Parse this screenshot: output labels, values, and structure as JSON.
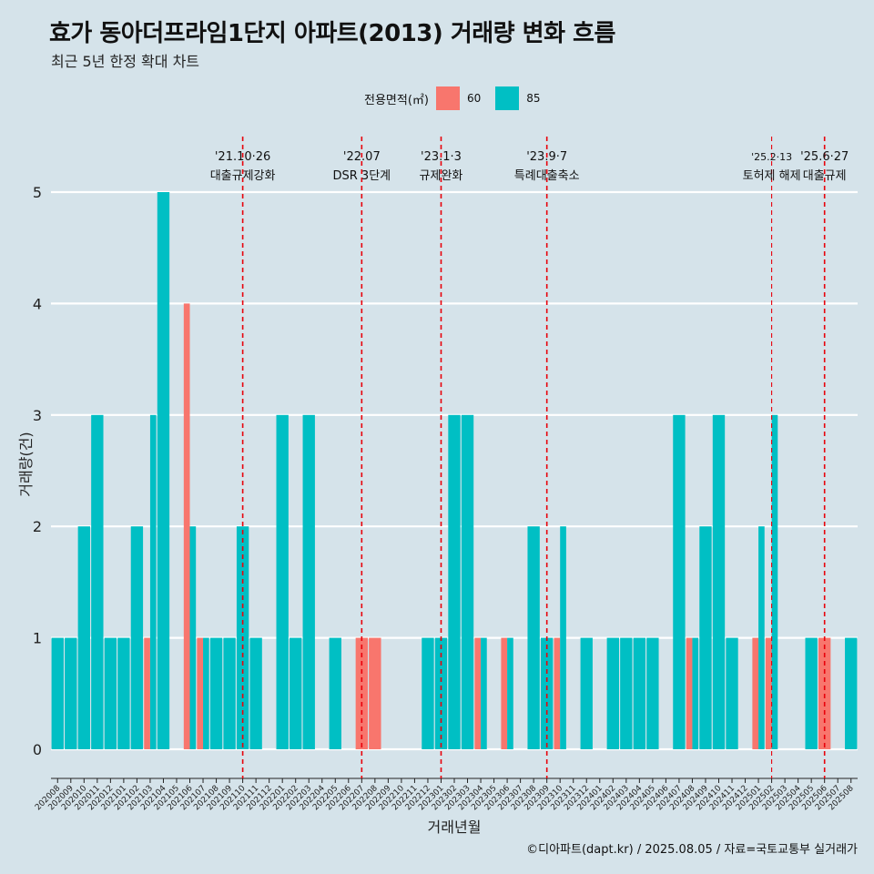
{
  "title": "효가 동아더프라임1단지 아파트(2013) 거래량 변화 흐름",
  "subtitle": "최근 5년 한정 확대 차트",
  "caption": "©디아파트(dapt.kr) / 2025.08.05 / 자료=국토교통부 실거래가",
  "colors": {
    "background": "#d5e3ea",
    "area60": "#f8766d",
    "area85": "#00bfc4",
    "event_line": "#e8000b",
    "grid": "#ffffff"
  },
  "chart_data": {
    "type": "bar",
    "title": "효가 동아더프라임1단지 아파트(2013) 거래량 변화 흐름",
    "subtitle": "최근 5년 한정 확대 차트",
    "xlabel": "거래년월",
    "ylabel": "거래량(건)",
    "ylim": [
      0,
      5
    ],
    "yticks": [
      0,
      1,
      2,
      3,
      4,
      5
    ],
    "grid": true,
    "legend": {
      "title": "전용면적(㎡)",
      "position": "top"
    },
    "categories": [
      "202008",
      "202009",
      "202010",
      "202011",
      "202012",
      "202101",
      "202102",
      "202103",
      "202104",
      "202105",
      "202106",
      "202107",
      "202108",
      "202109",
      "202110",
      "202111",
      "202112",
      "202201",
      "202202",
      "202203",
      "202204",
      "202205",
      "202206",
      "202207",
      "202208",
      "202209",
      "202210",
      "202211",
      "202212",
      "202301",
      "202302",
      "202303",
      "202304",
      "202305",
      "202306",
      "202307",
      "202308",
      "202309",
      "202310",
      "202311",
      "202312",
      "202401",
      "202402",
      "202403",
      "202404",
      "202405",
      "202406",
      "202407",
      "202408",
      "202409",
      "202410",
      "202411",
      "202412",
      "202501",
      "202502",
      "202503",
      "202504",
      "202505",
      "202506",
      "202507",
      "202508"
    ],
    "series": [
      {
        "name": "60",
        "color": "#f8766d",
        "values": [
          0,
          0,
          0,
          0,
          0,
          0,
          0,
          1,
          0,
          0,
          4,
          1,
          0,
          0,
          0,
          0,
          0,
          0,
          0,
          0,
          0,
          0,
          0,
          1,
          1,
          0,
          0,
          0,
          0,
          0,
          0,
          0,
          1,
          0,
          1,
          0,
          0,
          0,
          1,
          0,
          0,
          0,
          0,
          0,
          0,
          0,
          0,
          0,
          1,
          0,
          0,
          0,
          0,
          1,
          1,
          0,
          0,
          0,
          1,
          0,
          0
        ]
      },
      {
        "name": "85",
        "color": "#00bfc4",
        "values": [
          1,
          1,
          2,
          3,
          1,
          1,
          2,
          3,
          5,
          0,
          2,
          1,
          1,
          1,
          2,
          1,
          0,
          3,
          1,
          3,
          0,
          1,
          0,
          0,
          0,
          0,
          0,
          0,
          1,
          1,
          3,
          3,
          1,
          0,
          1,
          0,
          2,
          1,
          2,
          0,
          1,
          0,
          1,
          1,
          1,
          1,
          0,
          3,
          1,
          2,
          3,
          1,
          0,
          2,
          3,
          0,
          0,
          1,
          0,
          0,
          1
        ]
      }
    ],
    "annotations": [
      {
        "at": "202110",
        "date": "'21.10·26",
        "label": "대출규제강화"
      },
      {
        "at": "202207",
        "date": "'22.07",
        "label": "DSR 3단계"
      },
      {
        "at": "202301",
        "date": "'23.1·3",
        "label": "규제완화"
      },
      {
        "at": "202309",
        "date": "'23.9·7",
        "label": "특례대출축소"
      },
      {
        "at": "202502",
        "date": "'25.2·13",
        "label": "토허제 해제"
      },
      {
        "at": "202506",
        "date": "'25.6·27",
        "label": "대출규제"
      }
    ]
  }
}
